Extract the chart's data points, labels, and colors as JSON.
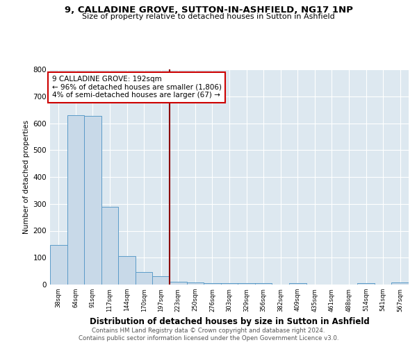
{
  "title": "9, CALLADINE GROVE, SUTTON-IN-ASHFIELD, NG17 1NP",
  "subtitle": "Size of property relative to detached houses in Sutton in Ashfield",
  "xlabel": "Distribution of detached houses by size in Sutton in Ashfield",
  "ylabel": "Number of detached properties",
  "footer1": "Contains HM Land Registry data © Crown copyright and database right 2024.",
  "footer2": "Contains public sector information licensed under the Open Government Licence v3.0.",
  "annotation_title": "9 CALLADINE GROVE: 192sqm",
  "annotation_line1": "← 96% of detached houses are smaller (1,806)",
  "annotation_line2": "4% of semi-detached houses are larger (67) →",
  "bar_labels": [
    "38sqm",
    "64sqm",
    "91sqm",
    "117sqm",
    "144sqm",
    "170sqm",
    "197sqm",
    "223sqm",
    "250sqm",
    "276sqm",
    "303sqm",
    "329sqm",
    "356sqm",
    "382sqm",
    "409sqm",
    "435sqm",
    "461sqm",
    "488sqm",
    "514sqm",
    "541sqm",
    "567sqm"
  ],
  "bar_values": [
    148,
    630,
    627,
    289,
    105,
    46,
    31,
    10,
    9,
    6,
    5,
    5,
    5,
    0,
    6,
    0,
    0,
    0,
    6,
    0,
    9
  ],
  "bar_color": "#c8d9e8",
  "bar_edge_color": "#5b9bc8",
  "vline_color": "#8b0000",
  "vline_x": 6.5,
  "annotation_box_color": "#ffffff",
  "annotation_box_edge": "#cc0000",
  "background_color": "#dde8f0",
  "ylim": [
    0,
    800
  ],
  "yticks": [
    0,
    100,
    200,
    300,
    400,
    500,
    600,
    700,
    800
  ]
}
